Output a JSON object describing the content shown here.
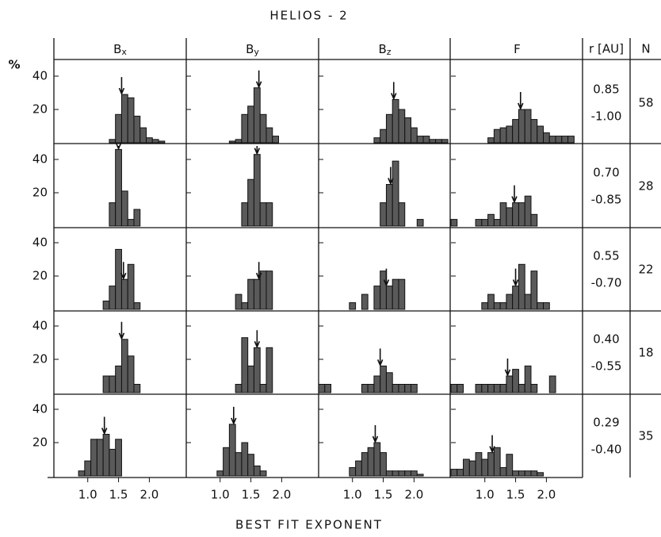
{
  "title": "HELIOS - 2",
  "x_label": "BEST FIT EXPONENT",
  "y_unit": "%",
  "column_headers": [
    {
      "main": "B",
      "sub": "x"
    },
    {
      "main": "B",
      "sub": "y"
    },
    {
      "main": "B",
      "sub": "z"
    },
    {
      "main": "F",
      "sub": ""
    }
  ],
  "r_header": "r [AU]",
  "n_header": "N",
  "rows": [
    {
      "r": [
        "0.85",
        "-1.00"
      ],
      "N": 58
    },
    {
      "r": [
        "0.70",
        "-0.85"
      ],
      "N": 28
    },
    {
      "r": [
        "0.55",
        "-0.70"
      ],
      "N": 22
    },
    {
      "r": [
        "0.40",
        "-0.55"
      ],
      "N": 18
    },
    {
      "r": [
        "0.29",
        "-0.40"
      ],
      "N": 35
    }
  ],
  "axes": {
    "xlim": [
      0.45,
      2.6
    ],
    "xticks": [
      {
        "value": 1,
        "label": "1.0"
      },
      {
        "value": 1.5,
        "label": "1.5"
      },
      {
        "value": 2,
        "label": "2.0"
      }
    ],
    "ylim": [
      0,
      50
    ],
    "yticks": [
      20,
      40
    ]
  },
  "chart_data": [
    {
      "type": "histogram",
      "color": "#5a5a5a",
      "bins": [
        1.35,
        1.45,
        1.55,
        1.65,
        1.75,
        1.85,
        1.95,
        2.05,
        2.15,
        2.25
      ],
      "values": [
        2,
        17,
        29,
        27,
        16,
        9,
        3,
        2,
        1
      ],
      "mean": 1.55
    },
    {
      "type": "histogram",
      "color": "#5a5a5a",
      "bins": [
        1.15,
        1.25,
        1.35,
        1.45,
        1.55,
        1.65,
        1.75,
        1.85,
        1.95
      ],
      "values": [
        1,
        2,
        17,
        22,
        33,
        17,
        9,
        4
      ],
      "mean": 1.63
    },
    {
      "type": "histogram",
      "color": "#5a5a5a",
      "bins": [
        1.35,
        1.45,
        1.55,
        1.65,
        1.75,
        1.85,
        1.95,
        2.05,
        2.15,
        2.25,
        2.35,
        2.45,
        2.55
      ],
      "values": [
        3,
        8,
        17,
        26,
        20,
        15,
        9,
        4,
        4,
        2,
        2,
        2
      ],
      "mean": 1.67
    },
    {
      "type": "histogram",
      "color": "#5a5a5a",
      "bins": [
        1.05,
        1.15,
        1.25,
        1.35,
        1.45,
        1.55,
        1.65,
        1.75,
        1.85,
        1.95,
        2.05,
        2.15,
        2.25,
        2.35,
        2.45
      ],
      "values": [
        3,
        8,
        9,
        10,
        14,
        20,
        20,
        14,
        10,
        6,
        4,
        4,
        4,
        4
      ],
      "mean": 1.58
    },
    {
      "type": "histogram",
      "color": "#5a5a5a",
      "bins": [
        1.35,
        1.45,
        1.55,
        1.65,
        1.75,
        1.85
      ],
      "values": [
        14,
        46,
        21,
        4,
        10
      ],
      "mean": 1.5
    },
    {
      "type": "histogram",
      "color": "#5a5a5a",
      "bins": [
        1.35,
        1.45,
        1.55,
        1.65,
        1.75,
        1.85
      ],
      "values": [
        14,
        28,
        43,
        14,
        14
      ],
      "mean": 1.6
    },
    {
      "type": "histogram",
      "color": "#5a5a5a",
      "bins": [
        1.45,
        1.55,
        1.65,
        1.75,
        1.85,
        1.95,
        2.05,
        2.15
      ],
      "values": [
        14,
        25,
        39,
        14,
        0,
        0,
        4
      ],
      "mean": 1.62
    },
    {
      "type": "histogram",
      "color": "#5a5a5a",
      "bins": [
        0.45,
        0.55,
        0.65,
        0.75,
        0.85,
        0.95,
        1.05,
        1.15,
        1.25,
        1.35,
        1.45,
        1.55,
        1.65,
        1.75,
        1.85
      ],
      "values": [
        4,
        0,
        0,
        0,
        4,
        4,
        7,
        4,
        14,
        11,
        14,
        14,
        18,
        7
      ],
      "mean": 1.48
    },
    {
      "type": "histogram",
      "color": "#5a5a5a",
      "bins": [
        1.25,
        1.35,
        1.45,
        1.55,
        1.65,
        1.75,
        1.85
      ],
      "values": [
        5,
        14,
        36,
        18,
        27,
        4
      ],
      "mean": 1.58
    },
    {
      "type": "histogram",
      "color": "#5a5a5a",
      "bins": [
        1.25,
        1.35,
        1.45,
        1.55,
        1.65,
        1.75,
        1.85
      ],
      "values": [
        9,
        4,
        18,
        18,
        23,
        23
      ],
      "mean": 1.63
    },
    {
      "type": "histogram",
      "color": "#5a5a5a",
      "bins": [
        0.95,
        1.05,
        1.15,
        1.25,
        1.35,
        1.45,
        1.55,
        1.65,
        1.75,
        1.85
      ],
      "values": [
        4,
        0,
        9,
        0,
        14,
        23,
        14,
        18,
        18
      ],
      "mean": 1.55
    },
    {
      "type": "histogram",
      "color": "#5a5a5a",
      "bins": [
        0.95,
        1.05,
        1.15,
        1.25,
        1.35,
        1.45,
        1.55,
        1.65,
        1.75,
        1.85,
        1.95,
        2.05
      ],
      "values": [
        4,
        9,
        4,
        4,
        9,
        14,
        27,
        9,
        23,
        4,
        4
      ],
      "mean": 1.5
    },
    {
      "type": "histogram",
      "color": "#5a5a5a",
      "bins": [
        1.25,
        1.35,
        1.45,
        1.55,
        1.65,
        1.75,
        1.85
      ],
      "values": [
        10,
        10,
        16,
        32,
        22,
        5
      ],
      "mean": 1.55
    },
    {
      "type": "histogram",
      "color": "#5a5a5a",
      "bins": [
        1.25,
        1.35,
        1.45,
        1.55,
        1.65,
        1.75,
        1.85
      ],
      "values": [
        5,
        33,
        16,
        27,
        5,
        27
      ],
      "mean": 1.6
    },
    {
      "type": "histogram",
      "color": "#5a5a5a",
      "bins": [
        0.45,
        0.55,
        0.65,
        0.75,
        0.85,
        0.95,
        1.05,
        1.15,
        1.25,
        1.35,
        1.45,
        1.55,
        1.65,
        1.75,
        1.85,
        1.95,
        2.05
      ],
      "values": [
        5,
        5,
        0,
        0,
        0,
        0,
        0,
        5,
        5,
        10,
        16,
        12,
        5,
        5,
        5,
        5
      ],
      "mean": 1.45
    },
    {
      "type": "histogram",
      "color": "#5a5a5a",
      "bins": [
        0.45,
        0.55,
        0.65,
        0.75,
        0.85,
        0.95,
        1.05,
        1.15,
        1.25,
        1.35,
        1.45,
        1.55,
        1.65,
        1.75,
        1.85,
        1.95,
        2.05,
        2.15
      ],
      "values": [
        5,
        5,
        0,
        0,
        5,
        5,
        5,
        5,
        5,
        10,
        14,
        5,
        16,
        5,
        0,
        0,
        10
      ],
      "mean": 1.37
    },
    {
      "type": "histogram",
      "color": "#5a5a5a",
      "bins": [
        0.85,
        0.95,
        1.05,
        1.15,
        1.25,
        1.35,
        1.45,
        1.55
      ],
      "values": [
        3,
        9,
        22,
        22,
        25,
        16,
        22
      ],
      "mean": 1.27
    },
    {
      "type": "histogram",
      "color": "#5a5a5a",
      "bins": [
        0.95,
        1.05,
        1.15,
        1.25,
        1.35,
        1.45,
        1.55,
        1.65,
        1.75
      ],
      "values": [
        3,
        17,
        31,
        14,
        20,
        13,
        6,
        3
      ],
      "mean": 1.22
    },
    {
      "type": "histogram",
      "color": "#5a5a5a",
      "bins": [
        0.95,
        1.05,
        1.15,
        1.25,
        1.35,
        1.45,
        1.55,
        1.65,
        1.75,
        1.85,
        1.95,
        2.05,
        2.15
      ],
      "values": [
        5,
        9,
        14,
        17,
        20,
        14,
        3,
        3,
        3,
        3,
        3,
        1
      ],
      "mean": 1.37
    },
    {
      "type": "histogram",
      "color": "#5a5a5a",
      "bins": [
        0.45,
        0.55,
        0.65,
        0.75,
        0.85,
        0.95,
        1.05,
        1.15,
        1.25,
        1.35,
        1.45,
        1.55,
        1.65,
        1.75,
        1.85,
        1.95
      ],
      "values": [
        4,
        4,
        10,
        9,
        14,
        10,
        14,
        17,
        5,
        13,
        3,
        3,
        3,
        3,
        2
      ],
      "mean": 1.12
    }
  ]
}
